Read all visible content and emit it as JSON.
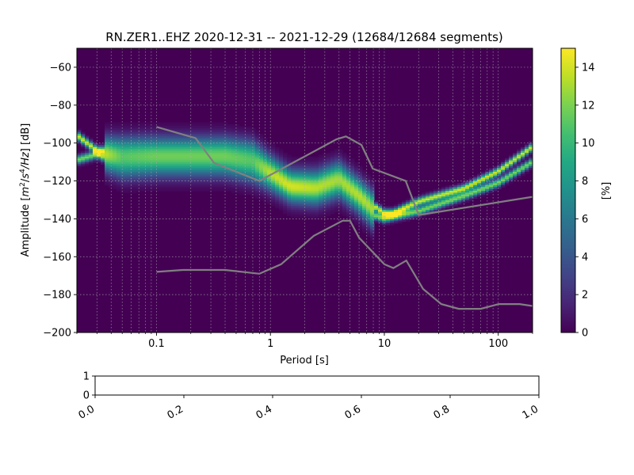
{
  "chart_data": [
    {
      "type": "heatmap",
      "title": "RN.ZER1..EHZ   2020-12-31 -- 2021-12-29  (12684/12684 segments)",
      "xlabel": "Period [s]",
      "ylabel_parts": {
        "pre": "Amplitude [",
        "m": "m",
        "exp2": "2",
        "slash": "/",
        "s": "s",
        "exp4": "4",
        "hz": "/Hz",
        "post": "] [dB]"
      },
      "xscale": "log",
      "xlim": [
        0.02,
        200
      ],
      "ylim": [
        -200,
        -50
      ],
      "grid": true,
      "x_ticks": [
        0.1,
        1,
        10,
        100
      ],
      "x_tick_labels": [
        "0.1",
        "1",
        "10",
        "100"
      ],
      "y_ticks": [
        -200,
        -180,
        -160,
        -140,
        -120,
        -100,
        -80,
        -60
      ],
      "y_tick_labels": [
        "−200",
        "−180",
        "−160",
        "−140",
        "−120",
        "−100",
        "−80",
        "−60"
      ],
      "colorbar": {
        "label": "[%]",
        "range": [
          0,
          15
        ],
        "ticks": [
          0,
          2,
          4,
          6,
          8,
          10,
          12,
          14
        ],
        "tick_labels": [
          "0",
          "2",
          "4",
          "6",
          "8",
          "10",
          "12",
          "14"
        ],
        "colormap": "viridis"
      },
      "density_ridges": [
        {
          "periods": [
            0.02,
            0.03,
            0.05,
            0.1,
            0.2,
            0.4,
            0.7,
            1.0,
            1.5,
            2.5,
            4.0,
            6.0,
            8.0,
            10.0,
            12.0,
            20.0,
            50.0,
            100.0,
            200.0
          ],
          "db": [
            -96,
            -104,
            -104,
            -104,
            -104,
            -104,
            -106,
            -114,
            -122,
            -122,
            -117,
            -126,
            -133,
            -137,
            -137,
            -131,
            -124,
            -115,
            -102
          ],
          "peak_percent": 14
        },
        {
          "periods": [
            0.02,
            0.03,
            0.05,
            0.1,
            0.2,
            0.4,
            0.7,
            1.0,
            1.5,
            2.5,
            4.0,
            6.0,
            8.0,
            10.0,
            12.0,
            20.0,
            50.0,
            100.0,
            200.0
          ],
          "db": [
            -109,
            -106,
            -112,
            -111,
            -111,
            -111,
            -114,
            -118,
            -124,
            -126,
            -122,
            -130,
            -138,
            -140,
            -139,
            -136,
            -128,
            -121,
            -110
          ],
          "peak_percent": 12
        }
      ],
      "noise_models": [
        {
          "periods": [
            0.1,
            0.17,
            0.4,
            0.8,
            1.24,
            2.4,
            4.3,
            5.0,
            6.0,
            10.0,
            12.0,
            15.6,
            21.9,
            31.6,
            45.0,
            70.0,
            101.0,
            154.0,
            200.0
          ],
          "db": [
            -168,
            -167,
            -167,
            -169,
            -164,
            -149,
            -141,
            -141,
            -150,
            -164,
            -166,
            -162,
            -177,
            -185,
            -187.5,
            -187.5,
            -185,
            -185,
            -186
          ],
          "color": "#808080"
        },
        {
          "periods": [
            0.1,
            0.22,
            0.32,
            0.8,
            3.8,
            4.6,
            6.3,
            7.9,
            15.4,
            20.0,
            354.8
          ],
          "db": [
            -91.5,
            -97.4,
            -110.5,
            -120,
            -98,
            -96.5,
            -101,
            -113.5,
            -120,
            -138,
            -126
          ],
          "color": "#808080"
        }
      ]
    },
    {
      "type": "table",
      "xlim": [
        0,
        1
      ],
      "ylim": [
        0,
        1
      ],
      "x_ticks": [
        0.0,
        0.2,
        0.4,
        0.6,
        0.8,
        1.0
      ],
      "x_tick_labels": [
        "0.0",
        "0.2",
        "0.4",
        "0.6",
        "0.8",
        "1.0"
      ],
      "y_ticks": [
        0,
        1
      ],
      "y_tick_labels": [
        "0",
        "1"
      ]
    }
  ]
}
